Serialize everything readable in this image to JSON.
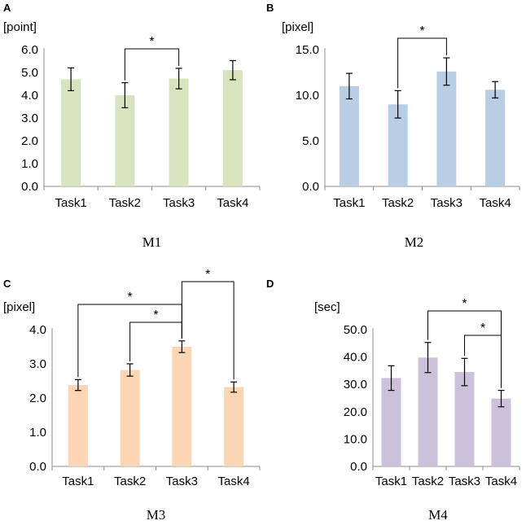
{
  "chart_data": [
    {
      "panel": "A",
      "caption": "M1",
      "type": "bar",
      "ylabel": "[point]",
      "categories": [
        "Task1",
        "Task2",
        "Task3",
        "Task4"
      ],
      "values": [
        4.7,
        4.0,
        4.73,
        5.1
      ],
      "errors": [
        0.5,
        0.55,
        0.45,
        0.42
      ],
      "ylim": [
        0,
        6
      ],
      "yticks": [
        "0.0",
        "1.0",
        "2.0",
        "3.0",
        "4.0",
        "5.0",
        "6.0"
      ],
      "color": "#d7e4bd",
      "significance": [
        {
          "from": 1,
          "to": 2,
          "label": "*"
        }
      ]
    },
    {
      "panel": "B",
      "caption": "M2",
      "type": "bar",
      "ylabel": "[pixel]",
      "categories": [
        "Task1",
        "Task2",
        "Task3",
        "Task4"
      ],
      "values": [
        11.0,
        9.0,
        12.6,
        10.6
      ],
      "errors": [
        1.4,
        1.5,
        1.5,
        0.9
      ],
      "ylim": [
        0,
        15
      ],
      "yticks": [
        "0.0",
        "5.0",
        "10.0",
        "15.0"
      ],
      "color": "#b9cde5",
      "significance": [
        {
          "from": 1,
          "to": 2,
          "label": "*"
        }
      ]
    },
    {
      "panel": "C",
      "caption": "M3",
      "type": "bar",
      "ylabel": "[pixel]",
      "categories": [
        "Task1",
        "Task2",
        "Task3",
        "Task4"
      ],
      "values": [
        2.38,
        2.82,
        3.5,
        2.32
      ],
      "errors": [
        0.16,
        0.18,
        0.17,
        0.15
      ],
      "ylim": [
        0,
        4
      ],
      "yticks": [
        "0.0",
        "1.0",
        "2.0",
        "3.0",
        "4.0"
      ],
      "color": "#fcd5b5",
      "significance": [
        {
          "from": 0,
          "to": 2,
          "label": "*"
        },
        {
          "from": 1,
          "to": 2,
          "label": "*"
        },
        {
          "from": 2,
          "to": 3,
          "label": "*"
        }
      ]
    },
    {
      "panel": "D",
      "caption": "M4",
      "type": "bar",
      "ylabel": "[sec]",
      "categories": [
        "Task1",
        "Task2",
        "Task3",
        "Task4"
      ],
      "values": [
        32.3,
        39.8,
        34.5,
        24.8
      ],
      "errors": [
        4.5,
        5.5,
        5.0,
        3.0
      ],
      "ylim": [
        0,
        50
      ],
      "yticks": [
        "0.0",
        "10.0",
        "20.0",
        "30.0",
        "40.0",
        "50.0"
      ],
      "color": "#ccc1da",
      "significance": [
        {
          "from": 1,
          "to": 3,
          "label": "*"
        },
        {
          "from": 2,
          "to": 3,
          "label": "*"
        }
      ]
    }
  ]
}
